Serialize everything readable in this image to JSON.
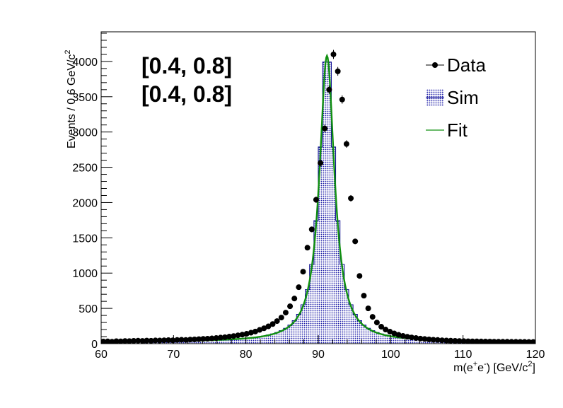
{
  "chart_data": {
    "type": "histogram-with-fit",
    "xlabel_main": "m(e",
    "xlabel_sup1": "+",
    "xlabel_mid": "e",
    "xlabel_sup2": "-",
    "xlabel_tail": ") [GeV/c",
    "xlabel_sup3": "2",
    "xlabel_end": "]",
    "ylabel_main": "Events / 0.6 GeV/c",
    "ylabel_sup": "2",
    "xlim": [
      60,
      120
    ],
    "ylim": [
      0,
      4420
    ],
    "x_ticks": [
      60,
      70,
      80,
      90,
      100,
      110,
      120
    ],
    "x_tick_labels": [
      "60",
      "70",
      "80",
      "90",
      "100",
      "110",
      "120"
    ],
    "y_ticks": [
      0,
      500,
      1000,
      1500,
      2000,
      2500,
      3000,
      3500,
      4000
    ],
    "y_tick_labels": [
      "0",
      "500",
      "1000",
      "1500",
      "2000",
      "2500",
      "3000",
      "3500",
      "4000"
    ],
    "annotations": [
      "[0.4, 0.8]",
      "[0.4, 0.8]"
    ],
    "legend": {
      "placement": "top-right",
      "entries": [
        {
          "label": "Data",
          "style": "marker"
        },
        {
          "label": "Sim",
          "style": "hatched-fill"
        },
        {
          "label": "Fit",
          "style": "line"
        }
      ]
    },
    "colors": {
      "data": "#000000",
      "sim_fill": "#1a1aa6",
      "sim_line": "#00008b",
      "fit": "#109010"
    },
    "data_points": {
      "x": [
        60.3,
        60.9,
        61.5,
        62.1,
        62.7,
        63.3,
        63.9,
        64.5,
        65.1,
        65.7,
        66.3,
        66.9,
        67.5,
        68.1,
        68.7,
        69.3,
        69.9,
        70.5,
        71.1,
        71.7,
        72.3,
        72.9,
        73.5,
        74.1,
        74.7,
        75.3,
        75.9,
        76.5,
        77.1,
        77.7,
        78.3,
        78.9,
        79.5,
        80.1,
        80.7,
        81.3,
        81.9,
        82.5,
        83.1,
        83.7,
        84.3,
        84.9,
        85.5,
        86.1,
        86.7,
        87.3,
        87.9,
        88.5,
        89.1,
        89.7,
        90.3,
        90.9,
        91.5,
        92.1,
        92.7,
        93.3,
        93.9,
        94.5,
        95.1,
        95.7,
        96.3,
        96.9,
        97.5,
        98.1,
        98.7,
        99.3,
        99.9,
        100.5,
        101.1,
        101.7,
        102.3,
        102.9,
        103.5,
        104.1,
        104.7,
        105.3,
        105.9,
        106.5,
        107.1,
        107.7,
        108.3,
        108.9,
        109.5,
        110.1,
        110.7,
        111.3,
        111.9,
        112.5,
        113.1,
        113.7,
        114.3,
        114.9,
        115.5,
        116.1,
        116.7,
        117.3,
        117.9,
        118.5,
        119.1,
        119.7
      ],
      "y": [
        30,
        32,
        28,
        35,
        33,
        38,
        36,
        40,
        42,
        39,
        44,
        41,
        46,
        45,
        48,
        50,
        47,
        52,
        55,
        53,
        58,
        60,
        64,
        68,
        70,
        75,
        80,
        86,
        92,
        100,
        108,
        118,
        128,
        140,
        155,
        172,
        195,
        218,
        245,
        278,
        320,
        370,
        440,
        530,
        640,
        800,
        1020,
        1360,
        1620,
        2040,
        2560,
        3050,
        3600,
        4100,
        3860,
        3460,
        2830,
        2060,
        1450,
        960,
        680,
        500,
        380,
        300,
        240,
        200,
        170,
        145,
        125,
        110,
        98,
        88,
        80,
        72,
        66,
        60,
        55,
        52,
        48,
        45,
        42,
        40,
        38,
        36,
        34,
        33,
        32,
        31,
        30,
        29,
        28,
        28,
        27,
        27,
        26,
        26,
        25,
        25,
        24,
        24
      ]
    },
    "sim_peak": 4220,
    "fit_peak": 4080,
    "sim_curve_params": {
      "mass": 91.2,
      "width": 2.5,
      "background_level": 25
    },
    "fit_curve_params": {
      "mass": 91.2,
      "width": 2.5,
      "background_level": 25
    }
  }
}
